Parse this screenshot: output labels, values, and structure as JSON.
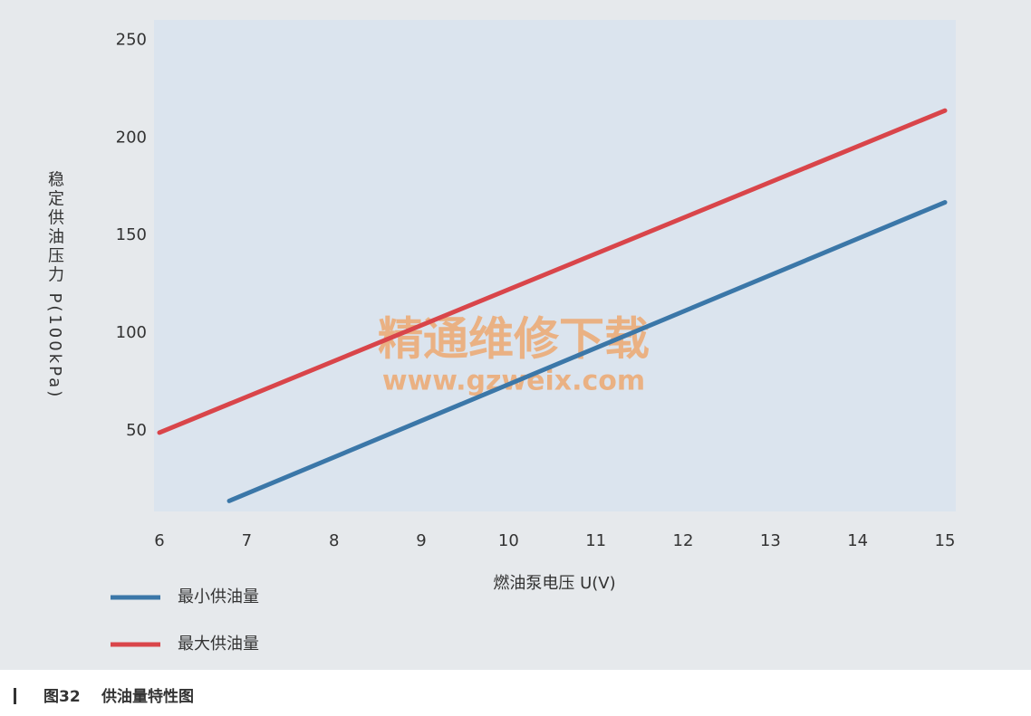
{
  "chart_data": {
    "type": "line",
    "x_label": "燃油泵电压 U(V)",
    "y_label": "稳定供油压力 P(100kPa)",
    "series": [
      {
        "name": "最小供油量",
        "color": "#3b77a8",
        "x": [
          6.8,
          15
        ],
        "values": [
          14,
          167
        ]
      },
      {
        "name": "最大供油量",
        "color": "#d9454a",
        "x": [
          6,
          15
        ],
        "values": [
          49,
          214
        ]
      }
    ],
    "xlim": [
      6,
      15
    ],
    "xticks": [
      6,
      7,
      8,
      9,
      10,
      11,
      12,
      13,
      14,
      15
    ],
    "ylim": [
      10,
      260
    ],
    "yticks": [
      50,
      100,
      150,
      200,
      250
    ],
    "grid": false,
    "watermark": [
      "精通维修下载",
      "www.gzweix.com"
    ]
  },
  "caption": {
    "label": "图32",
    "text": "供油量特性图"
  }
}
